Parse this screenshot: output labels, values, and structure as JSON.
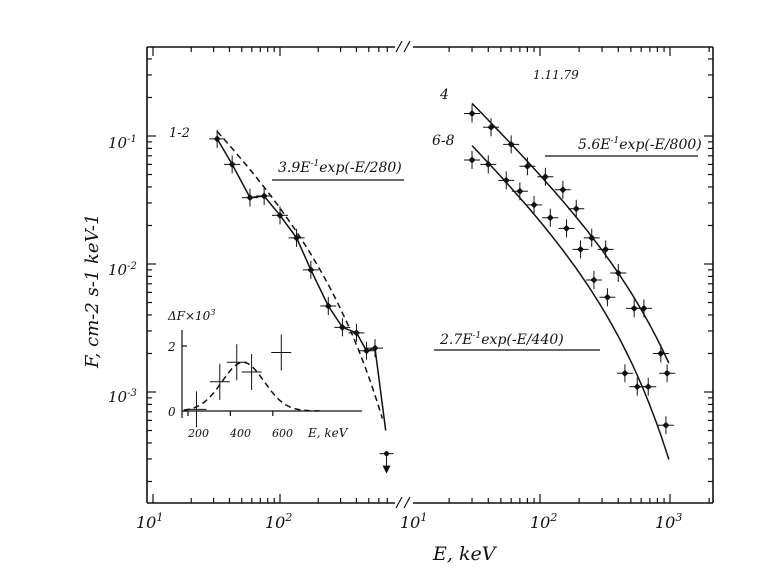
{
  "chart_data": {
    "type": "scatter",
    "y_axis_label": "F, cm-2 s-1 keV-1",
    "x_axis_label": "E, keV",
    "y_scale": "log",
    "ylim": [
      0.0003,
      0.3
    ],
    "y_tick_labels": [
      {
        "value": 0.1,
        "label": "10",
        "exp": "-1"
      },
      {
        "value": 0.01,
        "label": "10",
        "exp": "-2"
      },
      {
        "value": 0.001,
        "label": "10",
        "exp": "-3"
      }
    ],
    "panels": [
      {
        "name": "left",
        "x_scale": "log",
        "xlim": [
          10,
          1000
        ],
        "x_tick_labels": [
          {
            "value": 10,
            "label": "10",
            "exp": "1"
          },
          {
            "value": 100,
            "label": "10",
            "exp": "2"
          }
        ],
        "series": [
          {
            "name": "1-2",
            "points": [
              {
                "x": 32,
                "y": 0.095
              },
              {
                "x": 42,
                "y": 0.06
              },
              {
                "x": 58,
                "y": 0.033
              },
              {
                "x": 75,
                "y": 0.034
              },
              {
                "x": 100,
                "y": 0.024
              },
              {
                "x": 135,
                "y": 0.016
              },
              {
                "x": 175,
                "y": 0.009
              },
              {
                "x": 240,
                "y": 0.0047
              },
              {
                "x": 310,
                "y": 0.0032
              },
              {
                "x": 400,
                "y": 0.0029
              },
              {
                "x": 480,
                "y": 0.0021
              },
              {
                "x": 560,
                "y": 0.0022
              },
              {
                "x": 690,
                "y": 0.00033
              }
            ],
            "fit_label": "3.9E-1exp(-E/280)",
            "fit_label_parts": {
              "coef": "3.9E",
              "exp": "-1",
              "rest": "exp(-E/280)"
            }
          }
        ],
        "inset": {
          "y_label": "ΔF×10",
          "y_label_exp": "3",
          "x_label": "E, keV",
          "x_ticks": [
            "200",
            "400",
            "600"
          ],
          "y_ticks": [
            "0",
            "2"
          ],
          "xlim": [
            150,
            850
          ],
          "ylim": [
            -0.4,
            3.0
          ],
          "points": [
            {
              "x": 240,
              "y": 0.05
            },
            {
              "x": 350,
              "y": 0.9
            },
            {
              "x": 430,
              "y": 1.5
            },
            {
              "x": 500,
              "y": 1.2
            },
            {
              "x": 640,
              "y": 1.8
            }
          ]
        }
      },
      {
        "name": "right",
        "x_scale": "log",
        "xlim": [
          10,
          1000
        ],
        "x_tick_labels": [
          {
            "value": 10,
            "label": "10",
            "exp": "1"
          },
          {
            "value": 100,
            "label": "10",
            "exp": "2"
          },
          {
            "value": 1000,
            "label": "10",
            "exp": "3"
          }
        ],
        "annotation": "1.11.79",
        "series": [
          {
            "name": "4",
            "points": [
              {
                "x": 30,
                "y": 0.15
              },
              {
                "x": 42,
                "y": 0.117
              },
              {
                "x": 60,
                "y": 0.086
              },
              {
                "x": 80,
                "y": 0.058
              },
              {
                "x": 110,
                "y": 0.048
              },
              {
                "x": 150,
                "y": 0.038
              },
              {
                "x": 190,
                "y": 0.027
              },
              {
                "x": 250,
                "y": 0.016
              },
              {
                "x": 320,
                "y": 0.013
              },
              {
                "x": 400,
                "y": 0.0085
              },
              {
                "x": 530,
                "y": 0.0045
              },
              {
                "x": 630,
                "y": 0.0045
              },
              {
                "x": 850,
                "y": 0.002
              },
              {
                "x": 950,
                "y": 0.0014
              }
            ],
            "fit_label": "5.6E-1exp(-E/800)",
            "fit_label_parts": {
              "coef": "5.6E",
              "exp": "-1",
              "rest": "exp(-E/800)"
            }
          },
          {
            "name": "6-8",
            "points": [
              {
                "x": 30,
                "y": 0.065
              },
              {
                "x": 40,
                "y": 0.06
              },
              {
                "x": 55,
                "y": 0.045
              },
              {
                "x": 70,
                "y": 0.037
              },
              {
                "x": 90,
                "y": 0.029
              },
              {
                "x": 120,
                "y": 0.023
              },
              {
                "x": 160,
                "y": 0.019
              },
              {
                "x": 205,
                "y": 0.013
              },
              {
                "x": 260,
                "y": 0.0075
              },
              {
                "x": 330,
                "y": 0.0055
              },
              {
                "x": 450,
                "y": 0.0014
              },
              {
                "x": 560,
                "y": 0.0011
              },
              {
                "x": 680,
                "y": 0.0011
              },
              {
                "x": 930,
                "y": 0.00055
              }
            ],
            "fit_label": "2.7E-1exp(-E/440)",
            "fit_label_parts": {
              "coef": "2.7E",
              "exp": "-1",
              "rest": "exp(-E/440)"
            }
          }
        ]
      }
    ]
  }
}
